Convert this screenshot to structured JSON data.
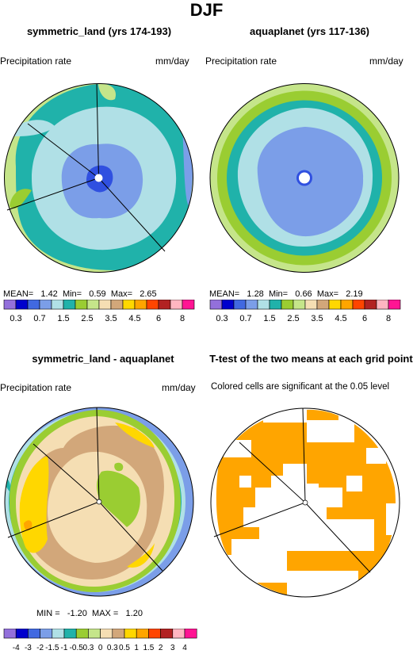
{
  "figure_title": "DJF",
  "chart_data": [
    {
      "type": "heatmap",
      "title": "symmetric_land (yrs 174-193)",
      "left_label": "Precipitation rate",
      "right_label": "mm/day",
      "stats": {
        "mean_label": "MEAN=",
        "mean": "1.42",
        "min_label": "Min=",
        "min": "0.59",
        "max_label": "Max=",
        "max": "2.65"
      },
      "levels": [
        "0.3",
        "0.7",
        "1.5",
        "2.5",
        "3.5",
        "4.5",
        "6",
        "8"
      ],
      "colorbar": [
        "#9370db",
        "#0000cd",
        "#4169e1",
        "#7b9ee8",
        "#b0e0e6",
        "#20b2aa",
        "#9acd32",
        "#c5e58a",
        "#f5deb3",
        "#d2a77a",
        "#ffd700",
        "#ffa500",
        "#ff4500",
        "#b22222",
        "#ffb6c1",
        "#ff1493"
      ],
      "palette": {
        "deep": "#3050e0",
        "inner": "#7b9ee8",
        "mid": "#b0e0e6",
        "ring": "#20b2aa",
        "outer": "#9acd32",
        "edge": "#c5e58a"
      }
    },
    {
      "type": "heatmap",
      "title": "aquaplanet (yrs 117-136)",
      "left_label": "Precipitation rate",
      "right_label": "mm/day",
      "stats": {
        "mean_label": "MEAN=",
        "mean": "1.28",
        "min_label": "Min=",
        "min": "0.66",
        "max_label": "Max=",
        "max": "2.19"
      },
      "levels": [
        "0.3",
        "0.7",
        "1.5",
        "2.5",
        "3.5",
        "4.5",
        "6",
        "8"
      ],
      "colorbar": [
        "#9370db",
        "#0000cd",
        "#4169e1",
        "#7b9ee8",
        "#b0e0e6",
        "#20b2aa",
        "#9acd32",
        "#c5e58a",
        "#f5deb3",
        "#d2a77a",
        "#ffd700",
        "#ffa500",
        "#ff4500",
        "#b22222",
        "#ffb6c1",
        "#ff1493"
      ],
      "palette": {
        "inner": "#7b9ee8",
        "mid": "#b0e0e6",
        "ring": "#20b2aa",
        "outer": "#9acd32",
        "edge": "#c5e58a"
      }
    },
    {
      "type": "heatmap",
      "title": "symmetric_land - aquaplanet",
      "left_label": "Precipitation rate",
      "right_label": "mm/day",
      "stats": {
        "min_label": "MIN =",
        "min": "-1.20",
        "max_label": "MAX =",
        "max": "1.20"
      },
      "levels": [
        "-4",
        "-3",
        "-2",
        "-1.5",
        "-1",
        "-0.5",
        "0.3",
        "0",
        "0.3",
        "0.5",
        "1",
        "1.5",
        "2",
        "3",
        "4"
      ],
      "colorbar": [
        "#9370db",
        "#0000cd",
        "#4169e1",
        "#7b9ee8",
        "#b0e0e6",
        "#20b2aa",
        "#9acd32",
        "#c5e58a",
        "#f5deb3",
        "#d2a77a",
        "#ffd700",
        "#ffa500",
        "#ff4500",
        "#b22222",
        "#ffb6c1",
        "#ff1493"
      ],
      "palette": {
        "edge": "#7b9ee8",
        "ring1": "#b0e0e6",
        "ring2": "#20b2aa",
        "ring3": "#9acd32",
        "base": "#f5deb3",
        "tan": "#d2a77a",
        "yellow": "#ffd700",
        "orange": "#ffa500",
        "green": "#9acd32"
      }
    },
    {
      "type": "heatmap",
      "title": "T-test of the two means at each grid point",
      "left_label": "Colored cells are significant at the 0.05 level",
      "significant_color": "#ffa500"
    }
  ]
}
